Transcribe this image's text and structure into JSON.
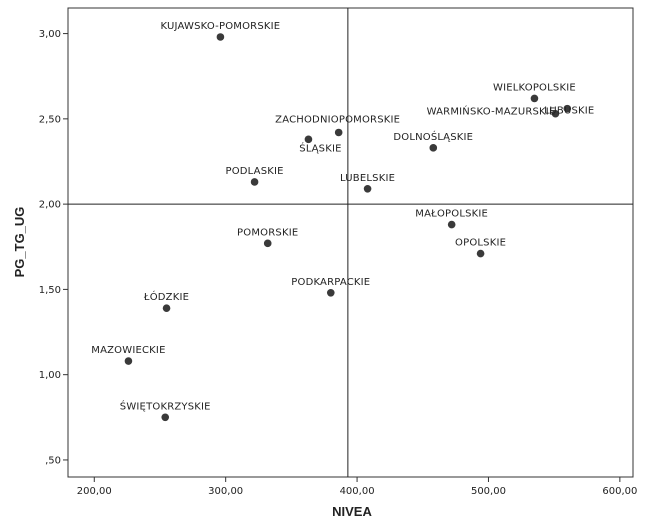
{
  "chart_data": {
    "type": "scatter",
    "xlabel": "NIVEA",
    "ylabel": "PG_TG_UG",
    "xlim": [
      180,
      610
    ],
    "ylim": [
      0.4,
      3.15
    ],
    "x_ticks": [
      200,
      300,
      400,
      500,
      600
    ],
    "x_tick_labels": [
      "200,00",
      "300,00",
      "400,00",
      "500,00",
      "600,00"
    ],
    "y_ticks": [
      0.5,
      1.0,
      1.5,
      2.0,
      2.5,
      3.0
    ],
    "y_tick_labels": [
      ",50",
      "1,00",
      "1,50",
      "2,00",
      "2,50",
      "3,00"
    ],
    "reference_lines": {
      "x": 393,
      "y": 2.0
    },
    "grid": false,
    "point_color": "#3a3a3a",
    "points": [
      {
        "label": "KUJAWSKO-POMORSKIE",
        "x": 296,
        "y": 2.98
      },
      {
        "label": "WIELKOPOLSKIE",
        "x": 535,
        "y": 2.62
      },
      {
        "label": "LUBUSKIE",
        "x": 560,
        "y": 2.56
      },
      {
        "label": "WARMIŃSKO-MAZURSKIE",
        "x": 551,
        "y": 2.53
      },
      {
        "label": "ZACHODNIOPOMORSKIE",
        "x": 386,
        "y": 2.42
      },
      {
        "label": "ŚLĄSKIE",
        "x": 363,
        "y": 2.38
      },
      {
        "label": "DOLNOŚLĄSKIE",
        "x": 458,
        "y": 2.33
      },
      {
        "label": "PODLASKIE",
        "x": 322,
        "y": 2.13
      },
      {
        "label": "LUBELSKIE",
        "x": 408,
        "y": 2.09
      },
      {
        "label": "MAŁOPOLSKIE",
        "x": 472,
        "y": 1.88
      },
      {
        "label": "POMORSKIE",
        "x": 332,
        "y": 1.77
      },
      {
        "label": "OPOLSKIE",
        "x": 494,
        "y": 1.71
      },
      {
        "label": "PODKARPACKIE",
        "x": 380,
        "y": 1.48
      },
      {
        "label": "ŁÓDZKIE",
        "x": 255,
        "y": 1.39
      },
      {
        "label": "MAZOWIECKIE",
        "x": 226,
        "y": 1.08
      },
      {
        "label": "ŚWIĘTOKRZYSKIE",
        "x": 254,
        "y": 0.75
      }
    ]
  }
}
